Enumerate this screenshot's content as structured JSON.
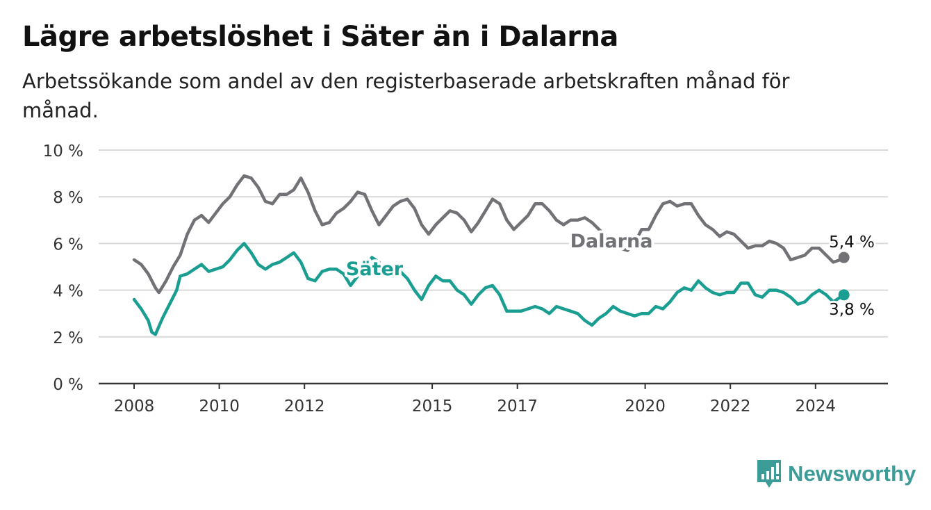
{
  "header": {
    "title": "Lägre arbetslöshet i Säter än i Dalarna",
    "subtitle": "Arbetssökande som andel av den registerbaserade arbetskraften månad för månad."
  },
  "brand": {
    "name": "Newsworthy",
    "color": "#3c9c97"
  },
  "chart_data": {
    "type": "line",
    "x_ticks": [
      "2008",
      "2010",
      "2012",
      "2015",
      "2017",
      "2020",
      "2022",
      "2024"
    ],
    "y_ticks": [
      "0 %",
      "2 %",
      "4 %",
      "6 %",
      "8 %",
      "10 %"
    ],
    "ylim": [
      0,
      10
    ],
    "grid": true,
    "legend": "inline labels",
    "series": [
      {
        "name": "Dalarna",
        "color": "#727176",
        "end_label": "5,4 %",
        "points": [
          [
            "2008-01",
            5.3
          ],
          [
            "2008-03",
            5.1
          ],
          [
            "2008-05",
            4.7
          ],
          [
            "2008-07",
            4.1
          ],
          [
            "2008-08",
            3.9
          ],
          [
            "2008-10",
            4.4
          ],
          [
            "2008-12",
            5.0
          ],
          [
            "2009-02",
            5.5
          ],
          [
            "2009-04",
            6.4
          ],
          [
            "2009-06",
            7.0
          ],
          [
            "2009-08",
            7.2
          ],
          [
            "2009-10",
            6.9
          ],
          [
            "2009-12",
            7.3
          ],
          [
            "2010-02",
            7.7
          ],
          [
            "2010-04",
            8.0
          ],
          [
            "2010-06",
            8.5
          ],
          [
            "2010-08",
            8.9
          ],
          [
            "2010-10",
            8.8
          ],
          [
            "2010-12",
            8.4
          ],
          [
            "2011-02",
            7.8
          ],
          [
            "2011-04",
            7.7
          ],
          [
            "2011-06",
            8.1
          ],
          [
            "2011-08",
            8.1
          ],
          [
            "2011-10",
            8.3
          ],
          [
            "2011-12",
            8.8
          ],
          [
            "2012-02",
            8.2
          ],
          [
            "2012-04",
            7.4
          ],
          [
            "2012-06",
            6.8
          ],
          [
            "2012-08",
            6.9
          ],
          [
            "2012-10",
            7.3
          ],
          [
            "2012-12",
            7.5
          ],
          [
            "2013-02",
            7.8
          ],
          [
            "2013-04",
            8.2
          ],
          [
            "2013-06",
            8.1
          ],
          [
            "2013-08",
            7.4
          ],
          [
            "2013-10",
            6.8
          ],
          [
            "2013-12",
            7.2
          ],
          [
            "2014-02",
            7.6
          ],
          [
            "2014-04",
            7.8
          ],
          [
            "2014-06",
            7.9
          ],
          [
            "2014-08",
            7.5
          ],
          [
            "2014-10",
            6.8
          ],
          [
            "2014-12",
            6.4
          ],
          [
            "2015-02",
            6.8
          ],
          [
            "2015-04",
            7.1
          ],
          [
            "2015-06",
            7.4
          ],
          [
            "2015-08",
            7.3
          ],
          [
            "2015-10",
            7.0
          ],
          [
            "2015-12",
            6.5
          ],
          [
            "2016-02",
            6.9
          ],
          [
            "2016-04",
            7.4
          ],
          [
            "2016-06",
            7.9
          ],
          [
            "2016-08",
            7.7
          ],
          [
            "2016-10",
            7.0
          ],
          [
            "2016-12",
            6.6
          ],
          [
            "2017-02",
            6.9
          ],
          [
            "2017-04",
            7.2
          ],
          [
            "2017-06",
            7.7
          ],
          [
            "2017-08",
            7.7
          ],
          [
            "2017-10",
            7.4
          ],
          [
            "2017-12",
            7.0
          ],
          [
            "2018-02",
            6.8
          ],
          [
            "2018-04",
            7.0
          ],
          [
            "2018-06",
            7.0
          ],
          [
            "2018-08",
            7.1
          ],
          [
            "2018-10",
            6.9
          ],
          [
            "2018-12",
            6.6
          ],
          [
            "2019-02",
            6.3
          ],
          [
            "2019-04",
            6.0
          ],
          [
            "2019-06",
            5.8
          ],
          [
            "2019-08",
            5.7
          ],
          [
            "2019-10",
            6.0
          ],
          [
            "2019-12",
            6.6
          ],
          [
            "2020-02",
            6.6
          ],
          [
            "2020-04",
            7.2
          ],
          [
            "2020-06",
            7.7
          ],
          [
            "2020-08",
            7.8
          ],
          [
            "2020-10",
            7.6
          ],
          [
            "2020-12",
            7.7
          ],
          [
            "2021-02",
            7.7
          ],
          [
            "2021-04",
            7.2
          ],
          [
            "2021-06",
            6.8
          ],
          [
            "2021-08",
            6.6
          ],
          [
            "2021-10",
            6.3
          ],
          [
            "2021-12",
            6.5
          ],
          [
            "2022-02",
            6.4
          ],
          [
            "2022-04",
            6.1
          ],
          [
            "2022-06",
            5.8
          ],
          [
            "2022-08",
            5.9
          ],
          [
            "2022-10",
            5.9
          ],
          [
            "2022-12",
            6.1
          ],
          [
            "2023-02",
            6.0
          ],
          [
            "2023-04",
            5.8
          ],
          [
            "2023-06",
            5.3
          ],
          [
            "2023-08",
            5.4
          ],
          [
            "2023-10",
            5.5
          ],
          [
            "2023-12",
            5.8
          ],
          [
            "2024-02",
            5.8
          ],
          [
            "2024-04",
            5.5
          ],
          [
            "2024-06",
            5.2
          ],
          [
            "2024-08",
            5.3
          ],
          [
            "2024-09",
            5.4
          ]
        ]
      },
      {
        "name": "Säter",
        "color": "#1a9e91",
        "end_label": "3,8 %",
        "points": [
          [
            "2008-01",
            3.6
          ],
          [
            "2008-03",
            3.2
          ],
          [
            "2008-05",
            2.7
          ],
          [
            "2008-06",
            2.2
          ],
          [
            "2008-07",
            2.1
          ],
          [
            "2008-09",
            2.8
          ],
          [
            "2008-11",
            3.4
          ],
          [
            "2009-01",
            4.0
          ],
          [
            "2009-02",
            4.6
          ],
          [
            "2009-04",
            4.7
          ],
          [
            "2009-06",
            4.9
          ],
          [
            "2009-08",
            5.1
          ],
          [
            "2009-10",
            4.8
          ],
          [
            "2009-12",
            4.9
          ],
          [
            "2010-02",
            5.0
          ],
          [
            "2010-04",
            5.3
          ],
          [
            "2010-06",
            5.7
          ],
          [
            "2010-08",
            6.0
          ],
          [
            "2010-10",
            5.6
          ],
          [
            "2010-12",
            5.1
          ],
          [
            "2011-02",
            4.9
          ],
          [
            "2011-04",
            5.1
          ],
          [
            "2011-06",
            5.2
          ],
          [
            "2011-08",
            5.4
          ],
          [
            "2011-10",
            5.6
          ],
          [
            "2011-12",
            5.2
          ],
          [
            "2012-02",
            4.5
          ],
          [
            "2012-04",
            4.4
          ],
          [
            "2012-06",
            4.8
          ],
          [
            "2012-08",
            4.9
          ],
          [
            "2012-10",
            4.9
          ],
          [
            "2012-12",
            4.7
          ],
          [
            "2013-02",
            4.2
          ],
          [
            "2013-04",
            4.6
          ],
          [
            "2013-06",
            5.0
          ],
          [
            "2013-08",
            5.4
          ],
          [
            "2013-10",
            5.2
          ],
          [
            "2013-12",
            4.7
          ],
          [
            "2014-02",
            4.6
          ],
          [
            "2014-04",
            4.8
          ],
          [
            "2014-06",
            4.5
          ],
          [
            "2014-08",
            4.0
          ],
          [
            "2014-10",
            3.6
          ],
          [
            "2014-12",
            4.2
          ],
          [
            "2015-02",
            4.6
          ],
          [
            "2015-04",
            4.4
          ],
          [
            "2015-06",
            4.4
          ],
          [
            "2015-08",
            4.0
          ],
          [
            "2015-10",
            3.8
          ],
          [
            "2015-12",
            3.4
          ],
          [
            "2016-02",
            3.8
          ],
          [
            "2016-04",
            4.1
          ],
          [
            "2016-06",
            4.2
          ],
          [
            "2016-08",
            3.8
          ],
          [
            "2016-10",
            3.1
          ],
          [
            "2016-12",
            3.1
          ],
          [
            "2017-02",
            3.1
          ],
          [
            "2017-04",
            3.2
          ],
          [
            "2017-06",
            3.3
          ],
          [
            "2017-08",
            3.2
          ],
          [
            "2017-10",
            3.0
          ],
          [
            "2017-12",
            3.3
          ],
          [
            "2018-02",
            3.2
          ],
          [
            "2018-04",
            3.1
          ],
          [
            "2018-06",
            3.0
          ],
          [
            "2018-08",
            2.7
          ],
          [
            "2018-10",
            2.5
          ],
          [
            "2018-12",
            2.8
          ],
          [
            "2019-02",
            3.0
          ],
          [
            "2019-04",
            3.3
          ],
          [
            "2019-06",
            3.1
          ],
          [
            "2019-08",
            3.0
          ],
          [
            "2019-10",
            2.9
          ],
          [
            "2019-12",
            3.0
          ],
          [
            "2020-02",
            3.0
          ],
          [
            "2020-04",
            3.3
          ],
          [
            "2020-06",
            3.2
          ],
          [
            "2020-08",
            3.5
          ],
          [
            "2020-10",
            3.9
          ],
          [
            "2020-12",
            4.1
          ],
          [
            "2021-02",
            4.0
          ],
          [
            "2021-04",
            4.4
          ],
          [
            "2021-06",
            4.1
          ],
          [
            "2021-08",
            3.9
          ],
          [
            "2021-10",
            3.8
          ],
          [
            "2021-12",
            3.9
          ],
          [
            "2022-02",
            3.9
          ],
          [
            "2022-04",
            4.3
          ],
          [
            "2022-06",
            4.3
          ],
          [
            "2022-08",
            3.8
          ],
          [
            "2022-10",
            3.7
          ],
          [
            "2022-12",
            4.0
          ],
          [
            "2023-02",
            4.0
          ],
          [
            "2023-04",
            3.9
          ],
          [
            "2023-06",
            3.7
          ],
          [
            "2023-08",
            3.4
          ],
          [
            "2023-10",
            3.5
          ],
          [
            "2023-12",
            3.8
          ],
          [
            "2024-02",
            4.0
          ],
          [
            "2024-04",
            3.8
          ],
          [
            "2024-06",
            3.5
          ],
          [
            "2024-08",
            3.7
          ],
          [
            "2024-09",
            3.8
          ]
        ]
      }
    ]
  }
}
